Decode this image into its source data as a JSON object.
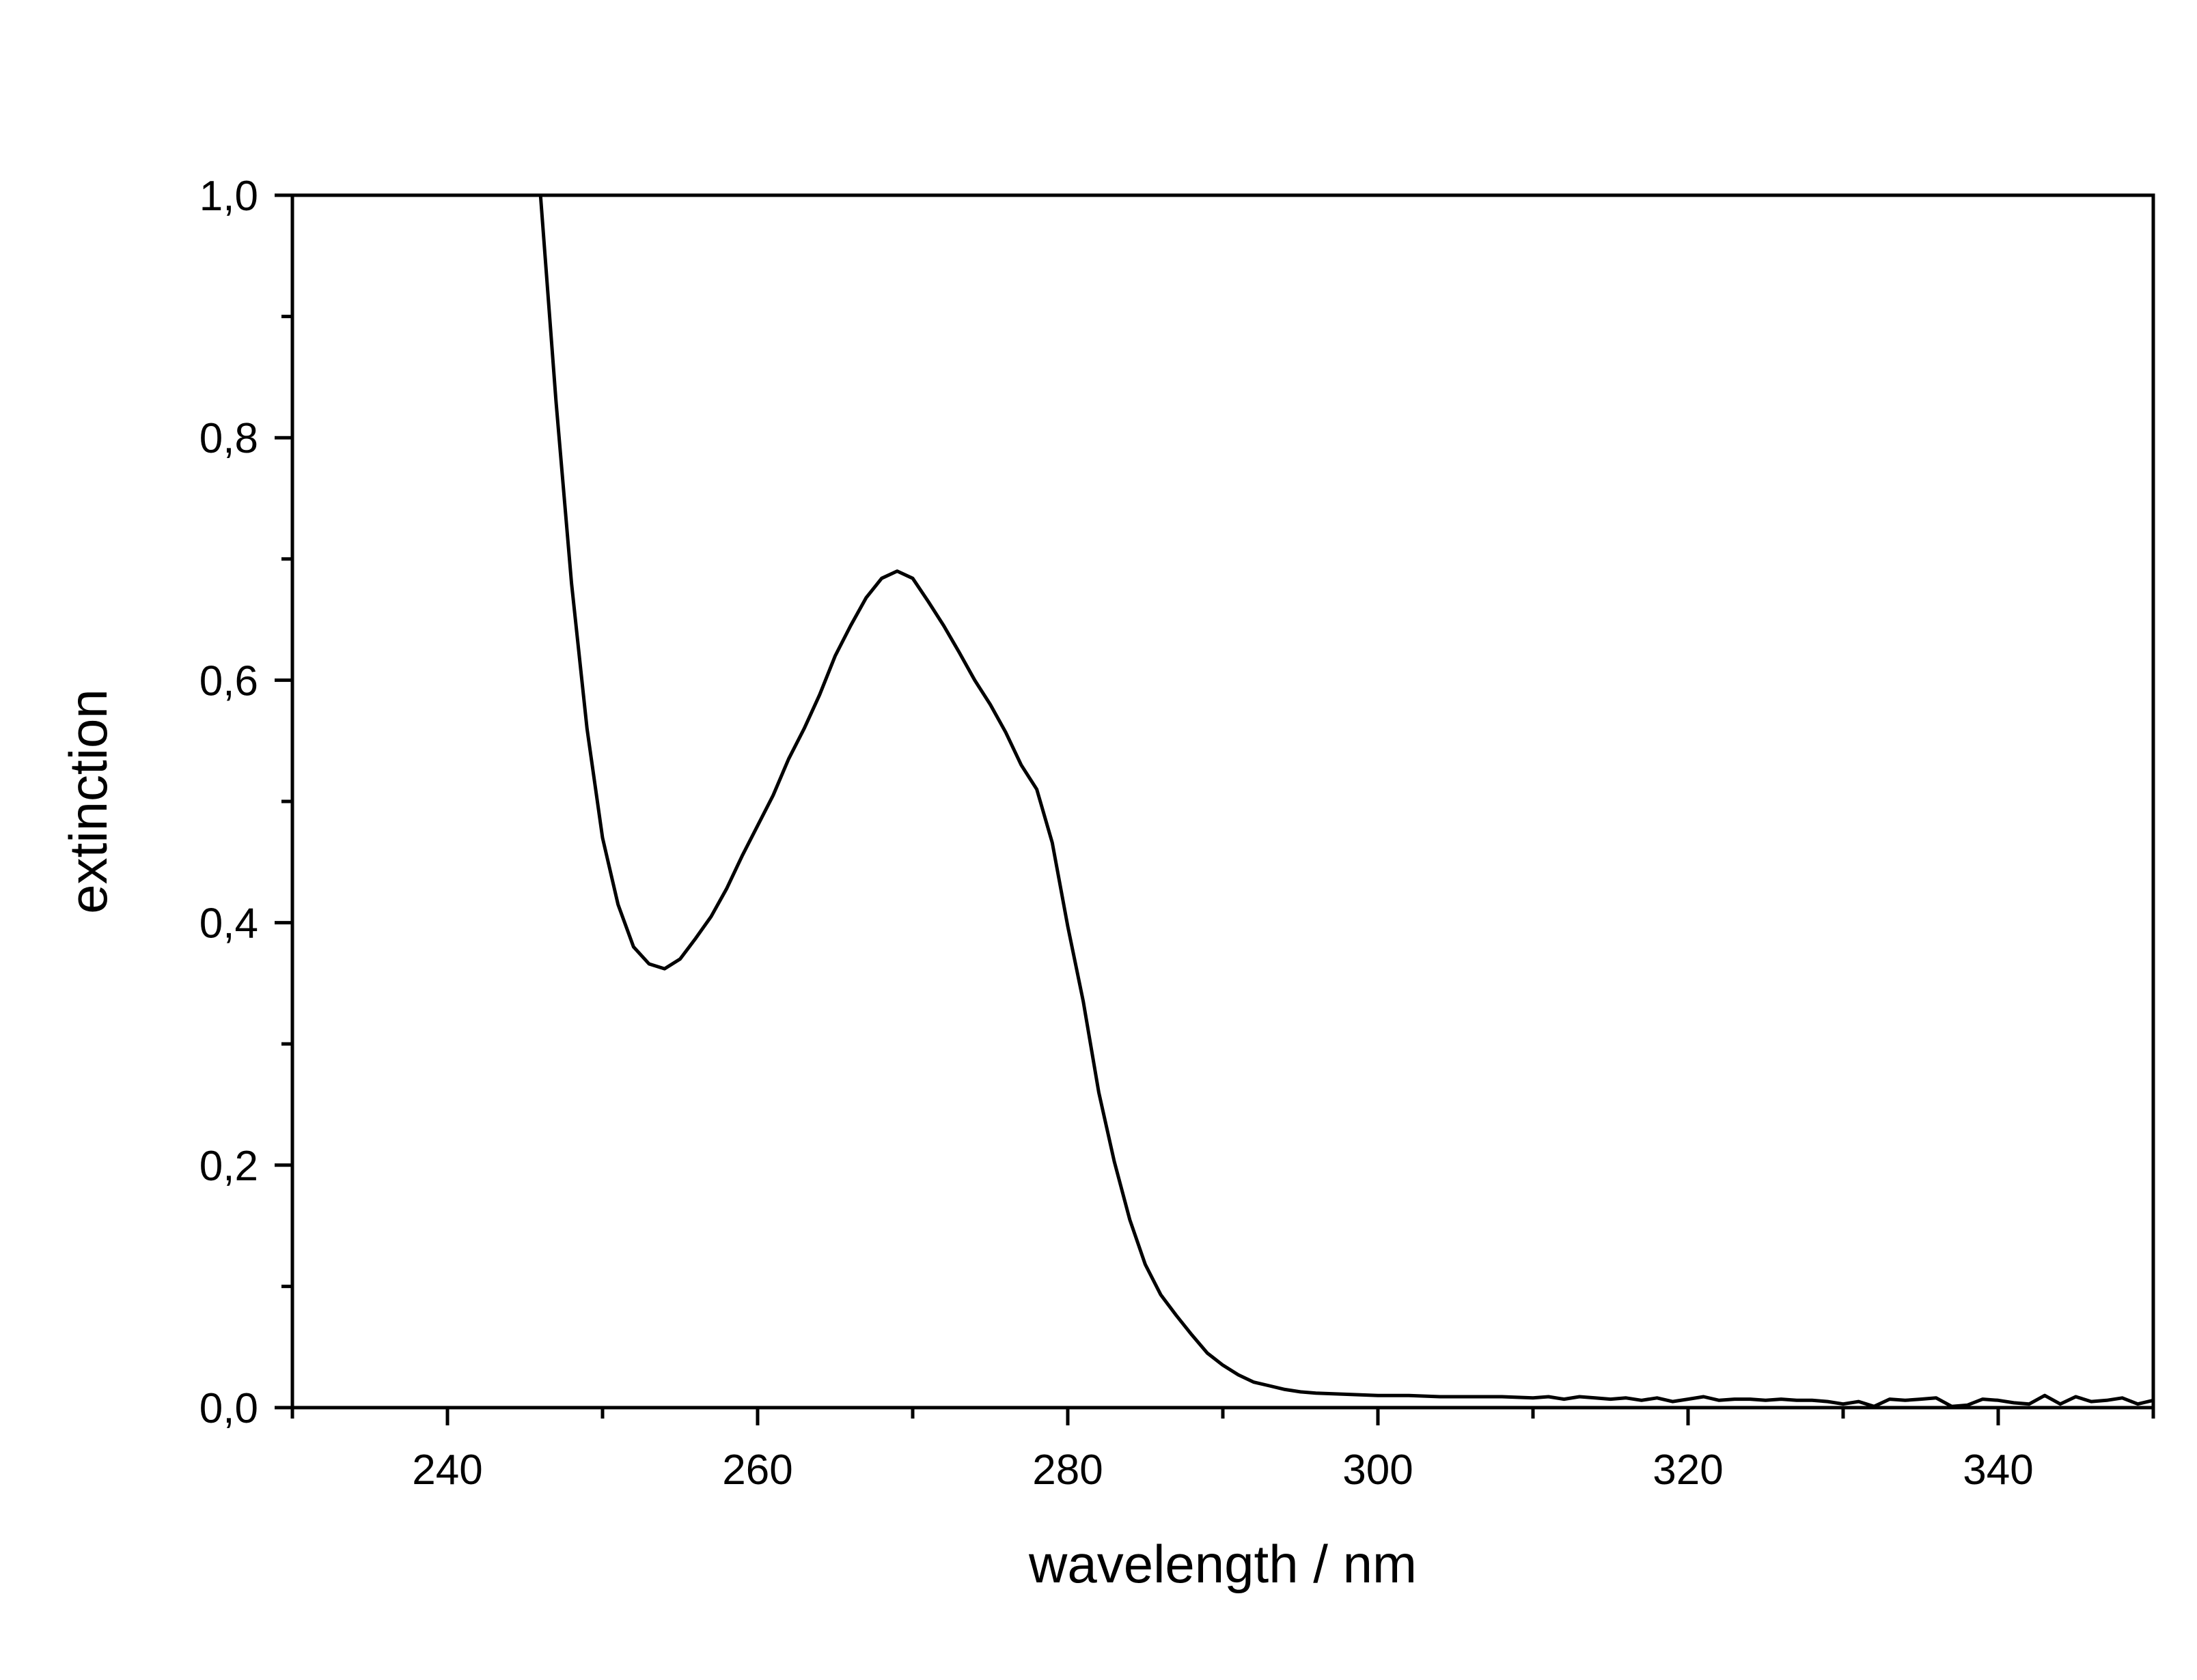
{
  "chart_data": {
    "type": "line",
    "title": "",
    "xlabel": "wavelength / nm",
    "ylabel": "extinction",
    "xlim": [
      230,
      350
    ],
    "ylim": [
      0.0,
      1.0
    ],
    "x_major_ticks": [
      240,
      260,
      280,
      300,
      320,
      340
    ],
    "x_minor_ticks": [
      230,
      250,
      270,
      290,
      310,
      330,
      350
    ],
    "y_major_ticks": [
      0.0,
      0.2,
      0.4,
      0.6,
      0.8,
      1.0
    ],
    "y_minor_ticks": [
      0.1,
      0.3,
      0.5,
      0.7,
      0.9
    ],
    "x_tick_labels": [
      "240",
      "260",
      "280",
      "300",
      "320",
      "340"
    ],
    "y_tick_labels": [
      "0,0",
      "0,2",
      "0,4",
      "0,6",
      "0,8",
      "1,0"
    ],
    "grid": false,
    "legend": "none",
    "line_color": "#000000",
    "series": [
      {
        "x": [
          246,
          247,
          248,
          249,
          250,
          251,
          252,
          253,
          254,
          255,
          256,
          257,
          258,
          259,
          260,
          261,
          262,
          263,
          264,
          265,
          266,
          267,
          268,
          269,
          270,
          271,
          272,
          273,
          274,
          275,
          276,
          277,
          278,
          279,
          280,
          281,
          282,
          283,
          284,
          285,
          286,
          287,
          288,
          289,
          290,
          291,
          292,
          293,
          294,
          295,
          296,
          298,
          300,
          302,
          304,
          306,
          308,
          310,
          311,
          312,
          313,
          314,
          315,
          316,
          317,
          318,
          319,
          320,
          321,
          322,
          323,
          324,
          325,
          326,
          327,
          328,
          329,
          330,
          331,
          332,
          333,
          334,
          335,
          336,
          337,
          338,
          339,
          340,
          341,
          342,
          343,
          344,
          345,
          346,
          347,
          348,
          349,
          350
        ],
        "y": [
          1.0,
          0.83,
          0.68,
          0.56,
          0.47,
          0.415,
          0.38,
          0.366,
          0.362,
          0.37,
          0.387,
          0.405,
          0.428,
          0.455,
          0.48,
          0.505,
          0.535,
          0.56,
          0.588,
          0.62,
          0.645,
          0.668,
          0.684,
          0.69,
          0.684,
          0.665,
          0.645,
          0.623,
          0.6,
          0.58,
          0.557,
          0.53,
          0.51,
          0.466,
          0.397,
          0.335,
          0.26,
          0.203,
          0.155,
          0.118,
          0.093,
          0.076,
          0.06,
          0.045,
          0.035,
          0.027,
          0.021,
          0.018,
          0.015,
          0.013,
          0.012,
          0.011,
          0.01,
          0.01,
          0.009,
          0.009,
          0.009,
          0.008,
          0.009,
          0.007,
          0.009,
          0.008,
          0.007,
          0.008,
          0.006,
          0.008,
          0.005,
          0.007,
          0.009,
          0.006,
          0.007,
          0.007,
          0.006,
          0.007,
          0.006,
          0.006,
          0.005,
          0.003,
          0.005,
          0.001,
          0.007,
          0.006,
          0.007,
          0.008,
          0.001,
          0.002,
          0.007,
          0.006,
          0.004,
          0.003,
          0.01,
          0.003,
          0.009,
          0.005,
          0.006,
          0.008,
          0.003,
          0.006
        ]
      }
    ]
  }
}
